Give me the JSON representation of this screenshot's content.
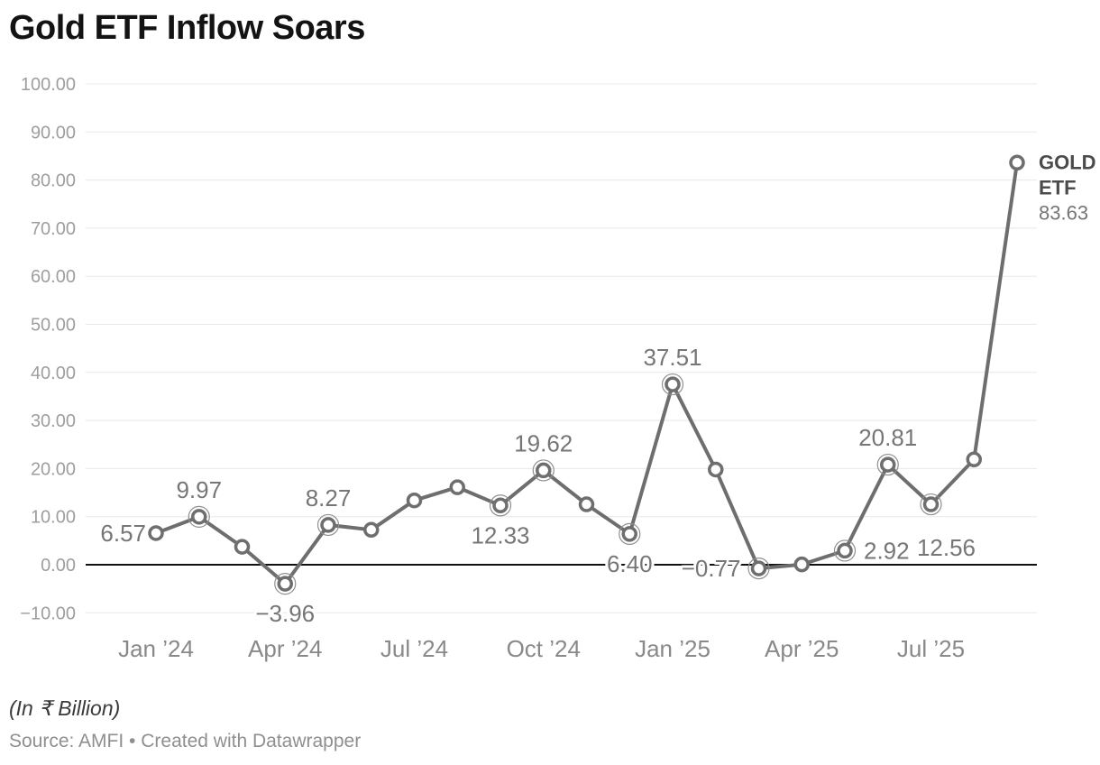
{
  "title": "Gold ETF Inflow Soars",
  "footer": {
    "unit_note": "(In ₹ Billion)",
    "source_note": "Source: AMFI • Created with Datawrapper"
  },
  "end_label": {
    "name_lines": [
      "GOLD",
      "ETF"
    ],
    "value": "83.63"
  },
  "chart_data": {
    "type": "line",
    "title": "Gold ETF Inflow Soars",
    "unit": "₹ Billion",
    "series_name": "GOLD ETF",
    "legend_position": "end-of-line-label",
    "grid": true,
    "ylim": [
      -10,
      100
    ],
    "y_tick_step": 10,
    "x_tick_labels": [
      {
        "label": "Jan ’24",
        "month_index": 0
      },
      {
        "label": "Apr ’24",
        "month_index": 3
      },
      {
        "label": "Jul ’24",
        "month_index": 6
      },
      {
        "label": "Oct ’24",
        "month_index": 9
      },
      {
        "label": "Jan ’25",
        "month_index": 12
      },
      {
        "label": "Apr ’25",
        "month_index": 15
      },
      {
        "label": "Jul ’25",
        "month_index": 18
      }
    ],
    "points": [
      {
        "month": "Jan ’24",
        "value": 6.57,
        "label": "6.57",
        "placement": "left",
        "ring": false
      },
      {
        "month": "Feb ’24",
        "value": 9.97,
        "label": "9.97",
        "placement": "above",
        "ring": true
      },
      {
        "month": "Mar ’24",
        "value": 3.73,
        "label": "",
        "placement": "none",
        "ring": false
      },
      {
        "month": "Apr ’24",
        "value": -3.96,
        "label": "−3.96",
        "placement": "below",
        "ring": true
      },
      {
        "month": "May ’24",
        "value": 8.27,
        "label": "8.27",
        "placement": "above",
        "ring": true
      },
      {
        "month": "Jun ’24",
        "value": 7.26,
        "label": "",
        "placement": "none",
        "ring": false
      },
      {
        "month": "Jul ’24",
        "value": 13.37,
        "label": "",
        "placement": "none",
        "ring": false
      },
      {
        "month": "Aug ’24",
        "value": 16.11,
        "label": "",
        "placement": "none",
        "ring": false
      },
      {
        "month": "Sep ’24",
        "value": 12.33,
        "label": "12.33",
        "placement": "below",
        "ring": true
      },
      {
        "month": "Oct ’24",
        "value": 19.62,
        "label": "19.62",
        "placement": "above",
        "ring": true
      },
      {
        "month": "Nov ’24",
        "value": 12.56,
        "label": "",
        "placement": "none",
        "ring": false
      },
      {
        "month": "Dec ’24",
        "value": 6.4,
        "label": "6.40",
        "placement": "below",
        "ring": true
      },
      {
        "month": "Jan ’25",
        "value": 37.51,
        "label": "37.51",
        "placement": "above",
        "ring": true
      },
      {
        "month": "Feb ’25",
        "value": 19.8,
        "label": "",
        "placement": "none",
        "ring": false
      },
      {
        "month": "Mar ’25",
        "value": -0.77,
        "label": "−0.77",
        "placement": "left",
        "ring": true
      },
      {
        "month": "Apr ’25",
        "value": 0.06,
        "label": "",
        "placement": "none",
        "ring": false
      },
      {
        "month": "May ’25",
        "value": 2.92,
        "label": "2.92",
        "placement": "right",
        "ring": true
      },
      {
        "month": "Jun ’25",
        "value": 20.81,
        "label": "20.81",
        "placement": "above",
        "ring": true
      },
      {
        "month": "Jul ’25",
        "value": 12.56,
        "label": "12.56",
        "placement": "below-right",
        "ring": true
      },
      {
        "month": "Aug ’25",
        "value": 21.9,
        "label": "",
        "placement": "none",
        "ring": false
      },
      {
        "month": "Sep ’25",
        "value": 83.63,
        "label": "",
        "placement": "end",
        "ring": false
      }
    ],
    "colors": {
      "background": "#ffffff",
      "line": "#6e6e6e",
      "marker_fill": "#ffffff",
      "marker_stroke": "#6e6e6e",
      "ring": "#8f8f8f",
      "zero_line": "#111111",
      "grid": "#e8e8e8",
      "title": "#131313",
      "data_label": "#767676",
      "x_tick_label": "#898989",
      "y_tick_label": "#9e9e9e",
      "end_label_name": "#4b4b4b",
      "end_label_value": "#767676",
      "unit_note": "#3a3a3a",
      "source_note": "#8f8f8f"
    }
  }
}
